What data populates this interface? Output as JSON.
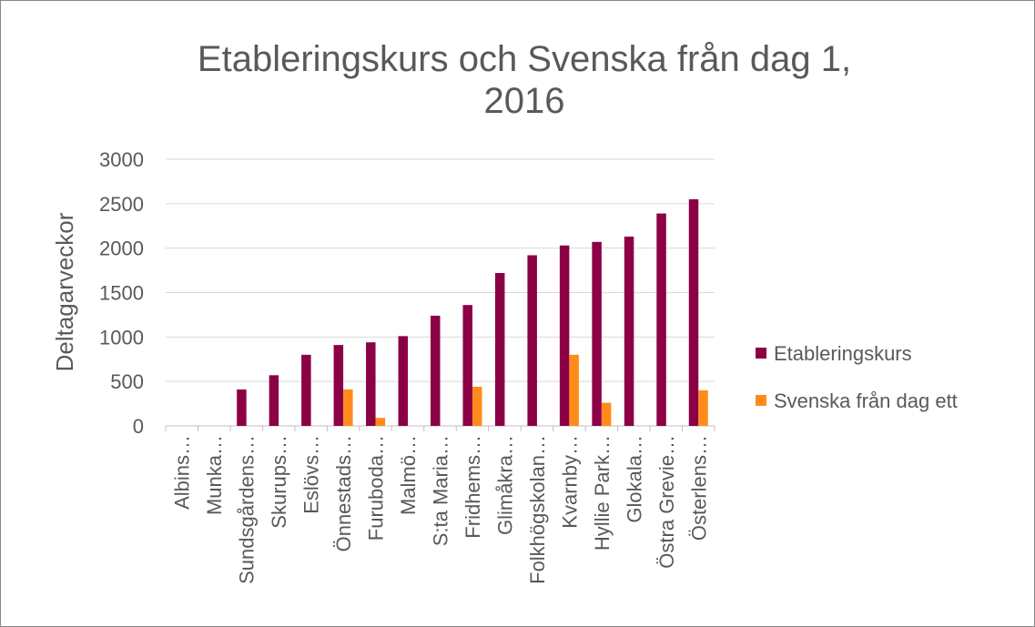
{
  "chart_data": {
    "type": "bar",
    "title": [
      "Etableringskurs och Svenska från dag 1,",
      "2016"
    ],
    "y_label": "Deltagarveckor",
    "categories": [
      "Albins…",
      "Munka…",
      "Sundsgårdens…",
      "Skurups…",
      "Eslövs…",
      "Önnestads…",
      "Furuboda…",
      "Malmö…",
      "S:ta Maria…",
      "Fridhems…",
      "Glimåkra…",
      "Folkhögskolan…",
      "Kvarnby…",
      "Hyllie Park…",
      "Glokala…",
      "Östra Grevie…",
      "Österlens…"
    ],
    "series": [
      {
        "name": "Etableringskurs",
        "color": "#8c0046",
        "values": [
          0,
          0,
          410,
          570,
          800,
          910,
          940,
          1010,
          1240,
          1360,
          1720,
          1920,
          2030,
          2070,
          2130,
          2390,
          2550
        ]
      },
      {
        "name": "Svenska från dag ett",
        "color": "#ff8c1a",
        "values": [
          0,
          0,
          0,
          0,
          0,
          410,
          90,
          0,
          0,
          440,
          0,
          0,
          800,
          260,
          0,
          0,
          400
        ]
      }
    ],
    "ylim": [
      0,
      3000
    ],
    "yticks": [
      0,
      500,
      1000,
      1500,
      2000,
      2500,
      3000
    ],
    "grid": true,
    "legend": "right"
  }
}
